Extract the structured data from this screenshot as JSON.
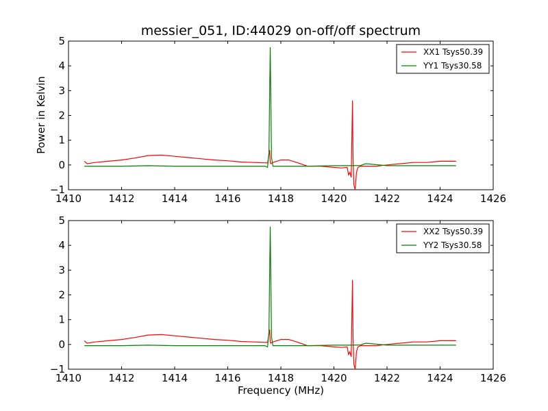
{
  "chart_data": [
    {
      "type": "line",
      "title": "messier_051, ID:44029 on-off/off spectrum",
      "xlabel": "",
      "ylabel": "Power in Kelvin",
      "xlim": [
        1410,
        1426
      ],
      "ylim": [
        -1,
        5
      ],
      "xticks": [
        1410,
        1412,
        1414,
        1416,
        1418,
        1420,
        1422,
        1424,
        1426
      ],
      "yticks": [
        -1,
        0,
        1,
        2,
        3,
        4,
        5
      ],
      "legend_position": "top-right",
      "series": [
        {
          "name": "XX1 Tsys50.39",
          "color": "#ff0000",
          "x": [
            1410.6,
            1410.7,
            1411.0,
            1411.5,
            1412.0,
            1412.5,
            1413.0,
            1413.5,
            1414.0,
            1414.5,
            1415.0,
            1415.5,
            1416.0,
            1416.5,
            1417.0,
            1417.5,
            1417.58,
            1417.6,
            1417.62,
            1417.7,
            1418.0,
            1418.3,
            1418.6,
            1419.0,
            1419.5,
            1420.0,
            1420.3,
            1420.5,
            1420.55,
            1420.6,
            1420.65,
            1420.7,
            1420.72,
            1420.75,
            1420.8,
            1420.85,
            1420.9,
            1421.0,
            1421.3,
            1421.6,
            1422.0,
            1422.5,
            1423.0,
            1423.5,
            1424.0,
            1424.6
          ],
          "y": [
            0.15,
            0.05,
            0.1,
            0.15,
            0.2,
            0.28,
            0.38,
            0.4,
            0.35,
            0.3,
            0.25,
            0.2,
            0.17,
            0.12,
            0.1,
            0.08,
            0.6,
            0.1,
            0.05,
            0.1,
            0.2,
            0.2,
            0.1,
            -0.05,
            -0.05,
            -0.1,
            -0.12,
            -0.1,
            -0.4,
            -0.3,
            -0.5,
            2.6,
            0.3,
            -0.8,
            -1.0,
            -0.3,
            -0.1,
            -0.05,
            -0.05,
            -0.05,
            0.0,
            0.05,
            0.1,
            0.1,
            0.15,
            0.15
          ]
        },
        {
          "name": "YY1 Tsys30.58",
          "color": "#008000",
          "x": [
            1410.6,
            1411.0,
            1412.0,
            1413.0,
            1414.0,
            1415.0,
            1416.0,
            1417.0,
            1417.4,
            1417.5,
            1417.55,
            1417.6,
            1417.65,
            1417.7,
            1418.0,
            1419.0,
            1420.0,
            1420.5,
            1421.0,
            1421.2,
            1422.0,
            1423.0,
            1424.0,
            1424.6
          ],
          "y": [
            -0.05,
            -0.05,
            -0.05,
            -0.03,
            -0.05,
            -0.05,
            -0.05,
            -0.05,
            -0.05,
            -0.1,
            0.5,
            4.75,
            0.3,
            -0.05,
            -0.05,
            -0.05,
            -0.03,
            -0.03,
            -0.02,
            0.05,
            -0.03,
            -0.03,
            -0.03,
            -0.03
          ]
        }
      ]
    },
    {
      "type": "line",
      "title": "",
      "xlabel": "Frequency (MHz)",
      "ylabel": "",
      "xlim": [
        1410,
        1426
      ],
      "ylim": [
        -1,
        5
      ],
      "xticks": [
        1410,
        1412,
        1414,
        1416,
        1418,
        1420,
        1422,
        1424,
        1426
      ],
      "yticks": [
        -1,
        0,
        1,
        2,
        3,
        4,
        5
      ],
      "legend_position": "top-right",
      "series": [
        {
          "name": "XX2 Tsys50.39",
          "color": "#ff0000",
          "x": [
            1410.6,
            1410.7,
            1411.0,
            1411.5,
            1412.0,
            1412.5,
            1413.0,
            1413.5,
            1414.0,
            1414.5,
            1415.0,
            1415.5,
            1416.0,
            1416.5,
            1417.0,
            1417.5,
            1417.58,
            1417.6,
            1417.62,
            1417.7,
            1418.0,
            1418.3,
            1418.6,
            1419.0,
            1419.5,
            1420.0,
            1420.3,
            1420.5,
            1420.55,
            1420.6,
            1420.65,
            1420.7,
            1420.72,
            1420.75,
            1420.8,
            1420.85,
            1420.9,
            1421.0,
            1421.3,
            1421.6,
            1422.0,
            1422.5,
            1423.0,
            1423.5,
            1424.0,
            1424.6
          ],
          "y": [
            0.15,
            0.05,
            0.1,
            0.15,
            0.2,
            0.28,
            0.38,
            0.4,
            0.35,
            0.3,
            0.25,
            0.2,
            0.17,
            0.12,
            0.1,
            0.08,
            0.6,
            0.1,
            0.05,
            0.1,
            0.2,
            0.2,
            0.1,
            -0.05,
            -0.05,
            -0.1,
            -0.12,
            -0.1,
            -0.4,
            -0.3,
            -0.5,
            2.6,
            0.3,
            -0.8,
            -1.0,
            -0.3,
            -0.1,
            -0.05,
            -0.05,
            -0.05,
            0.0,
            0.05,
            0.1,
            0.1,
            0.15,
            0.15
          ]
        },
        {
          "name": "YY2 Tsys30.58",
          "color": "#008000",
          "x": [
            1410.6,
            1411.0,
            1412.0,
            1413.0,
            1414.0,
            1415.0,
            1416.0,
            1417.0,
            1417.4,
            1417.5,
            1417.55,
            1417.6,
            1417.65,
            1417.7,
            1418.0,
            1419.0,
            1420.0,
            1420.5,
            1421.0,
            1421.2,
            1422.0,
            1423.0,
            1424.0,
            1424.6
          ],
          "y": [
            -0.05,
            -0.05,
            -0.05,
            -0.03,
            -0.05,
            -0.05,
            -0.05,
            -0.05,
            -0.05,
            -0.1,
            0.5,
            4.75,
            0.3,
            -0.05,
            -0.05,
            -0.05,
            -0.03,
            -0.03,
            -0.02,
            0.05,
            -0.03,
            -0.03,
            -0.03,
            -0.03
          ]
        }
      ]
    }
  ]
}
